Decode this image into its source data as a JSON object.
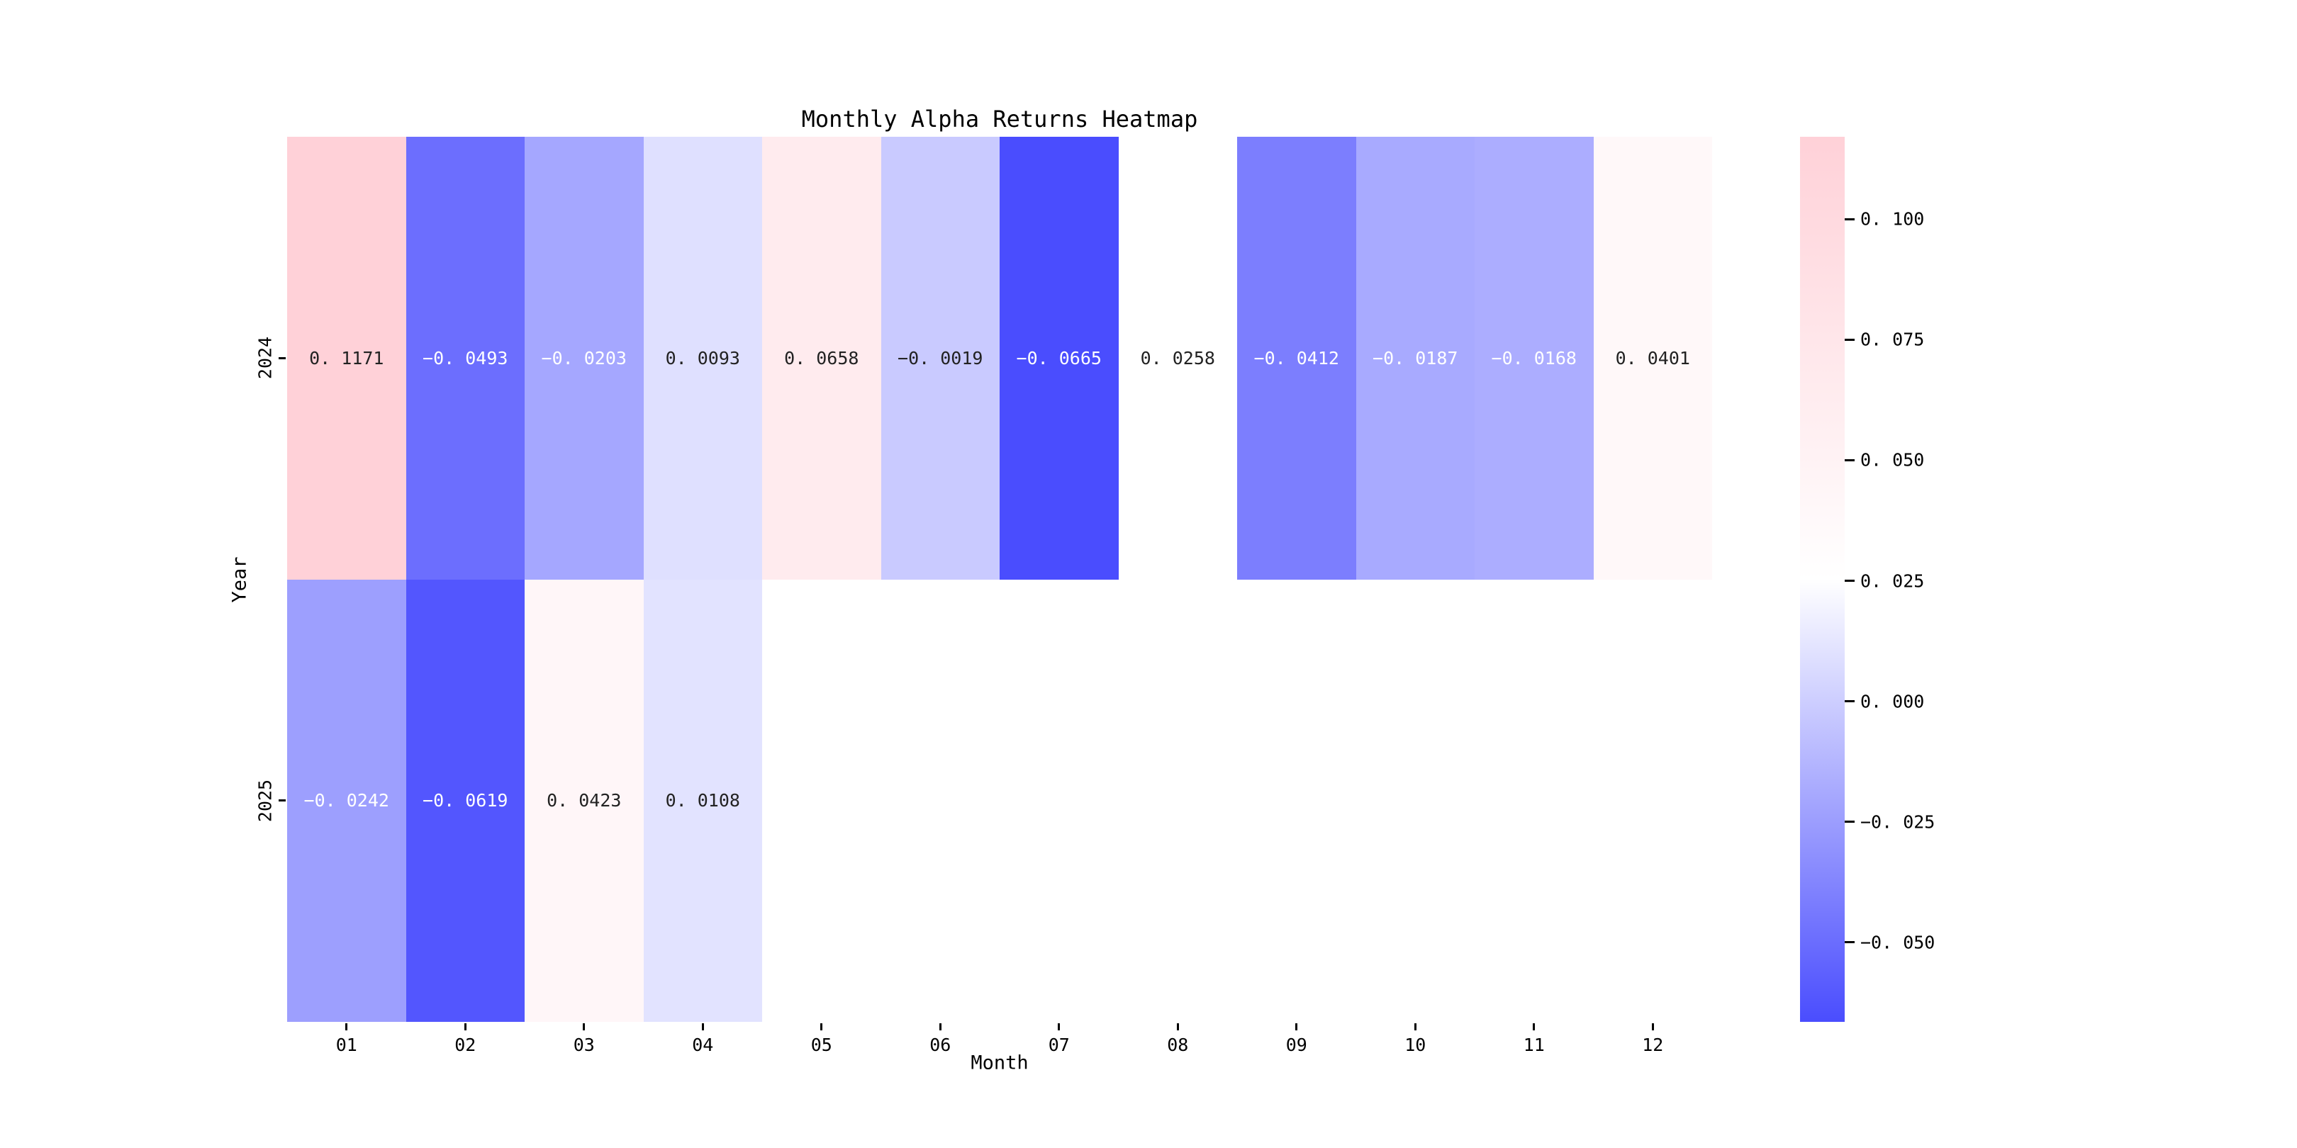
{
  "chart_data": {
    "type": "heatmap",
    "title": "Monthly Alpha Returns Heatmap",
    "xlabel": "Month",
    "ylabel": "Year",
    "x_categories": [
      "01",
      "02",
      "03",
      "04",
      "05",
      "06",
      "07",
      "08",
      "09",
      "10",
      "11",
      "12"
    ],
    "y_categories": [
      "2024",
      "2025"
    ],
    "series": [
      {
        "name": "2024",
        "values": [
          0.1171,
          -0.0493,
          -0.0203,
          0.0093,
          0.0658,
          -0.0019,
          -0.0665,
          0.0258,
          -0.0412,
          -0.0187,
          -0.0168,
          0.0401
        ]
      },
      {
        "name": "2025",
        "values": [
          -0.0242,
          -0.0619,
          0.0423,
          0.0108,
          null,
          null,
          null,
          null,
          null,
          null,
          null,
          null
        ]
      }
    ],
    "vmin": -0.0665,
    "vmax": 0.1171,
    "color_midpoint": 0.0253,
    "annotation_decimals": 4,
    "colorbar": {
      "position": "right",
      "ticks": [
        "0.100",
        "0.075",
        "0.050",
        "0.025",
        "0.000",
        "-0.025",
        "-0.050"
      ],
      "tick_values": [
        0.1,
        0.075,
        0.05,
        0.025,
        0.0,
        -0.025,
        -0.05
      ]
    },
    "colors": {
      "min_color": "#4A4DFE",
      "mid_color": "#FFFFFF",
      "max_color": "#FFD1D8",
      "annot_dark_text": "#222222",
      "annot_light_text": "#FFFFFF",
      "background": "#FFFFFF"
    },
    "grid": false,
    "missing_cells_rendered_as": "blank"
  }
}
